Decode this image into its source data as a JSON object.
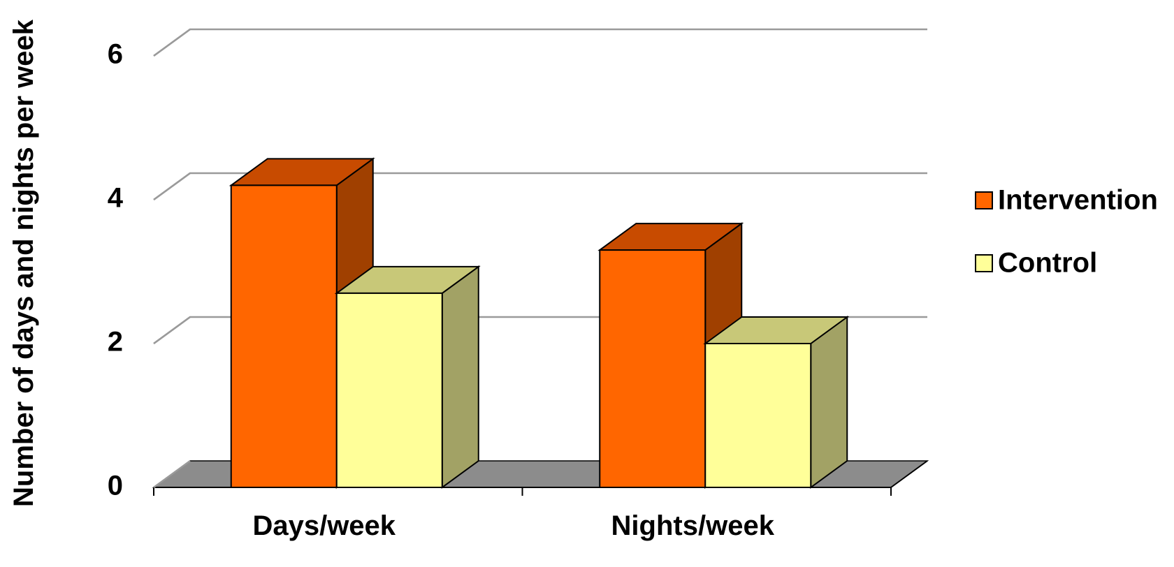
{
  "chart_data": {
    "type": "bar",
    "categories": [
      "Days/week",
      "Nights/week"
    ],
    "series": [
      {
        "name": "Intervention",
        "values": [
          4.2,
          3.3
        ],
        "color": "#FF6600",
        "top_color": "#C84B00",
        "side_color": "#A04000"
      },
      {
        "name": "Control",
        "values": [
          2.7,
          2.0
        ],
        "color": "#FFFF99",
        "top_color": "#C8C878",
        "side_color": "#A2A265"
      }
    ],
    "ylabel": "Number of days and nights per week",
    "xlabel": "",
    "title": "",
    "ylim": [
      0,
      6
    ],
    "yticks": [
      "0",
      "2",
      "4",
      "6"
    ],
    "grid": true,
    "legend_position": "right",
    "style": "3d"
  }
}
